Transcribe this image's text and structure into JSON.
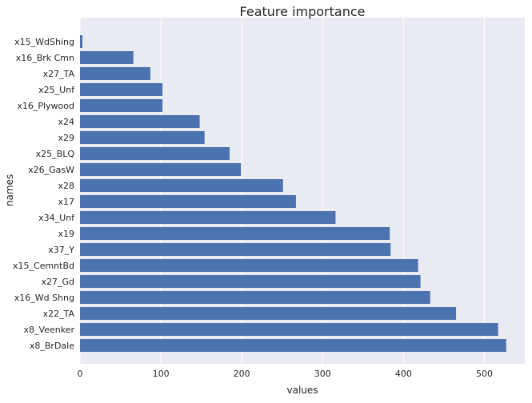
{
  "chart_data": {
    "type": "bar",
    "orientation": "horizontal",
    "title": "Feature importance",
    "xlabel": "values",
    "ylabel": "names",
    "xlim": [
      0,
      550
    ],
    "xticks": [
      0,
      100,
      200,
      300,
      400,
      500
    ],
    "grid": "vertical",
    "bar_color": "#4c72b0",
    "background_color": "#eaeaf2",
    "grid_color": "#ffffff",
    "categories": [
      "x15_WdShing",
      "x16_Brk Cmn",
      "x27_TA",
      "x25_Unf",
      "x16_Plywood",
      "x24",
      "x29",
      "x25_BLQ",
      "x26_GasW",
      "x28",
      "x17",
      "x34_Unf",
      "x19",
      "x37_Y",
      "x15_CemntBd",
      "x27_Gd",
      "x16_Wd Shng",
      "x22_TA",
      "x8_Veenker",
      "x8_BrDale"
    ],
    "values": [
      3,
      66,
      87,
      102,
      102,
      148,
      154,
      185,
      199,
      251,
      267,
      316,
      383,
      384,
      418,
      421,
      433,
      465,
      517,
      527
    ]
  }
}
